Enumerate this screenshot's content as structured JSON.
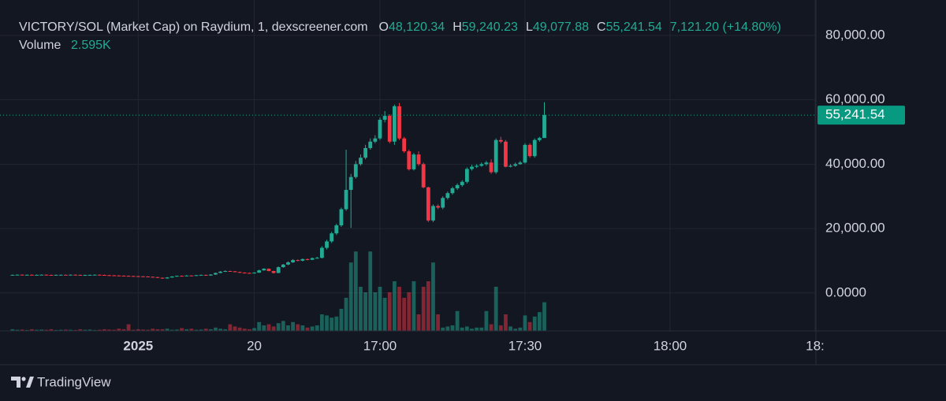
{
  "chart_data": {
    "type": "candlestick",
    "title": "VICTORY/SOL (Market Cap) on Raydium, 1, dexscreener.com",
    "ohlc_labels": [
      {
        "key": "O",
        "value": "48,120.34"
      },
      {
        "key": "H",
        "value": "59,240.23"
      },
      {
        "key": "L",
        "value": "49,077.88"
      },
      {
        "key": "C",
        "value": "55,241.54"
      }
    ],
    "change_label": "7,121.20 (+14.80%)",
    "volume_title": "Volume",
    "volume_value_label": "2.595K",
    "last_price_label": "55,241.54",
    "brand": "TradingView",
    "up_color": "#22ab94",
    "down_color": "#f23645",
    "grid": true,
    "open": [
      5550,
      5600,
      5650,
      5580,
      5620,
      5560,
      5600,
      5650,
      5580,
      5540,
      5600,
      5620,
      5580,
      5640,
      5600,
      5520,
      5560,
      5600,
      5640,
      5580,
      5500,
      5450,
      5400,
      5350,
      5300,
      5250,
      5200,
      5150,
      5100,
      5000,
      4900,
      4700,
      4500,
      4800,
      5100,
      5300,
      5200,
      5400,
      5350,
      5500,
      5600,
      5400,
      5700,
      6200,
      6600,
      6800,
      6700,
      6500,
      6300,
      6200,
      6100,
      6300,
      7000,
      7500,
      6800,
      6200,
      8000,
      8800,
      9500,
      10200,
      10000,
      10500,
      10300,
      10800,
      10900,
      14000,
      16000,
      18500,
      21000,
      26000,
      32000,
      36000,
      40000,
      42000,
      45000,
      47000,
      48000,
      53800,
      55000,
      47000,
      58000,
      48000,
      44000,
      38400,
      43000,
      40000,
      32800,
      22500,
      27000,
      26500,
      29500,
      31000,
      32500,
      33500,
      34500,
      38500,
      39200,
      39500,
      40000,
      40500,
      37500,
      47500,
      47000,
      39200,
      39500,
      40000,
      40500,
      46000,
      42500,
      47500,
      48120.34
    ],
    "high": [
      5700,
      5750,
      5750,
      5720,
      5720,
      5700,
      5750,
      5750,
      5680,
      5700,
      5720,
      5720,
      5740,
      5740,
      5700,
      5660,
      5700,
      5740,
      5740,
      5680,
      5600,
      5550,
      5500,
      5450,
      5400,
      5350,
      5300,
      5250,
      5200,
      5100,
      5000,
      4800,
      4900,
      5200,
      5400,
      5400,
      5500,
      5500,
      5600,
      5700,
      5700,
      5800,
      6300,
      6800,
      7000,
      6900,
      6800,
      6600,
      6400,
      6300,
      6400,
      7200,
      7700,
      7600,
      6900,
      8200,
      9000,
      9800,
      10500,
      10400,
      10700,
      10700,
      11000,
      11200,
      14500,
      16500,
      19000,
      21500,
      26500,
      44500,
      37000,
      41000,
      43000,
      46000,
      48000,
      49000,
      54500,
      56500,
      55500,
      58500,
      59000,
      48500,
      44500,
      43500,
      44000,
      40500,
      33000,
      27500,
      27500,
      30000,
      31500,
      33000,
      34000,
      35000,
      39000,
      39800,
      40000,
      40500,
      41000,
      41500,
      48000,
      48500,
      47500,
      40000,
      40500,
      41000,
      46500,
      46500,
      48000,
      48500,
      59240.23
    ],
    "low": [
      5450,
      5500,
      5480,
      5480,
      5460,
      5460,
      5500,
      5480,
      5440,
      5440,
      5500,
      5480,
      5480,
      5500,
      5420,
      5420,
      5460,
      5500,
      5480,
      5400,
      5350,
      5300,
      5250,
      5200,
      5150,
      5100,
      5050,
      5000,
      4900,
      4800,
      4600,
      4400,
      4400,
      4700,
      5000,
      5100,
      5100,
      5250,
      5250,
      5400,
      5300,
      5300,
      5600,
      6100,
      6500,
      6600,
      6400,
      6200,
      6100,
      6000,
      6000,
      6200,
      6900,
      6700,
      6000,
      6100,
      7800,
      8600,
      9300,
      9800,
      9800,
      10100,
      10200,
      10600,
      10700,
      13500,
      15500,
      18000,
      20500,
      25500,
      20200,
      35500,
      39500,
      41500,
      44500,
      46500,
      47500,
      53000,
      46500,
      46000,
      47500,
      43500,
      38000,
      38000,
      39500,
      32500,
      22000,
      22000,
      26000,
      26000,
      29000,
      30500,
      32000,
      33000,
      34000,
      38000,
      38800,
      39200,
      39500,
      37000,
      37000,
      46500,
      39000,
      39000,
      39200,
      39800,
      40200,
      42000,
      42000,
      47000,
      49077.88
    ],
    "close": [
      5600,
      5650,
      5580,
      5620,
      5560,
      5600,
      5650,
      5580,
      5540,
      5600,
      5620,
      5580,
      5640,
      5600,
      5520,
      5560,
      5600,
      5640,
      5580,
      5500,
      5450,
      5400,
      5350,
      5300,
      5250,
      5200,
      5150,
      5100,
      5000,
      4900,
      4700,
      4500,
      4800,
      5100,
      5300,
      5200,
      5400,
      5350,
      5500,
      5600,
      5400,
      5700,
      6200,
      6600,
      6800,
      6700,
      6500,
      6300,
      6200,
      6100,
      6300,
      7000,
      7500,
      6800,
      6200,
      8000,
      8800,
      9500,
      10200,
      10000,
      10500,
      10300,
      10800,
      10900,
      14000,
      16000,
      18500,
      21000,
      26000,
      32000,
      36000,
      40000,
      42000,
      45000,
      47000,
      48000,
      53800,
      55000,
      47000,
      58000,
      48000,
      44000,
      38400,
      43000,
      40000,
      32800,
      22500,
      27000,
      26500,
      29500,
      31000,
      32500,
      33500,
      34500,
      38500,
      39200,
      39500,
      40000,
      40500,
      37500,
      47500,
      47000,
      39200,
      39500,
      40000,
      40500,
      46000,
      42500,
      47500,
      48120.34,
      55241.54
    ],
    "volume": [
      150,
      100,
      120,
      80,
      150,
      100,
      120,
      100,
      150,
      80,
      100,
      120,
      100,
      80,
      150,
      100,
      120,
      80,
      100,
      150,
      120,
      100,
      200,
      150,
      600,
      100,
      150,
      120,
      100,
      200,
      150,
      150,
      200,
      100,
      120,
      250,
      150,
      200,
      100,
      120,
      200,
      150,
      300,
      200,
      150,
      600,
      400,
      300,
      200,
      150,
      250,
      800,
      500,
      600,
      400,
      700,
      900,
      500,
      800,
      600,
      500,
      300,
      400,
      500,
      1500,
      1400,
      1200,
      1300,
      2000,
      3000,
      6200,
      7200,
      4000,
      3500,
      7200,
      3500,
      4000,
      3000,
      3500,
      4500,
      4000,
      3000,
      3500,
      4500,
      1500,
      4000,
      4500,
      6200,
      1500,
      300,
      400,
      500,
      1800,
      300,
      400,
      200,
      300,
      300,
      1800,
      600,
      4000,
      500,
      1500,
      400,
      200,
      300,
      1400,
      800,
      1300,
      1700,
      2595
    ],
    "ylim": [
      -11800,
      91000
    ],
    "yticks": [
      {
        "value": 0,
        "label": "0.0000"
      },
      {
        "value": 20000,
        "label": "20,000.00"
      },
      {
        "value": 40000,
        "label": "40,000.00"
      },
      {
        "value": 60000,
        "label": "60,000.00"
      },
      {
        "value": 80000,
        "label": "80,000.00"
      }
    ],
    "volume_ylim": [
      0,
      30000
    ],
    "xlim": [
      -2.59,
      166.17
    ],
    "xticks": [
      {
        "value": 26,
        "label": "2025"
      },
      {
        "value": 50,
        "label": "20"
      },
      {
        "value": 76,
        "label": "17:00"
      },
      {
        "value": 106,
        "label": "17:30"
      },
      {
        "value": 136,
        "label": "18:00"
      },
      {
        "value": 166,
        "label": "18:"
      }
    ]
  }
}
